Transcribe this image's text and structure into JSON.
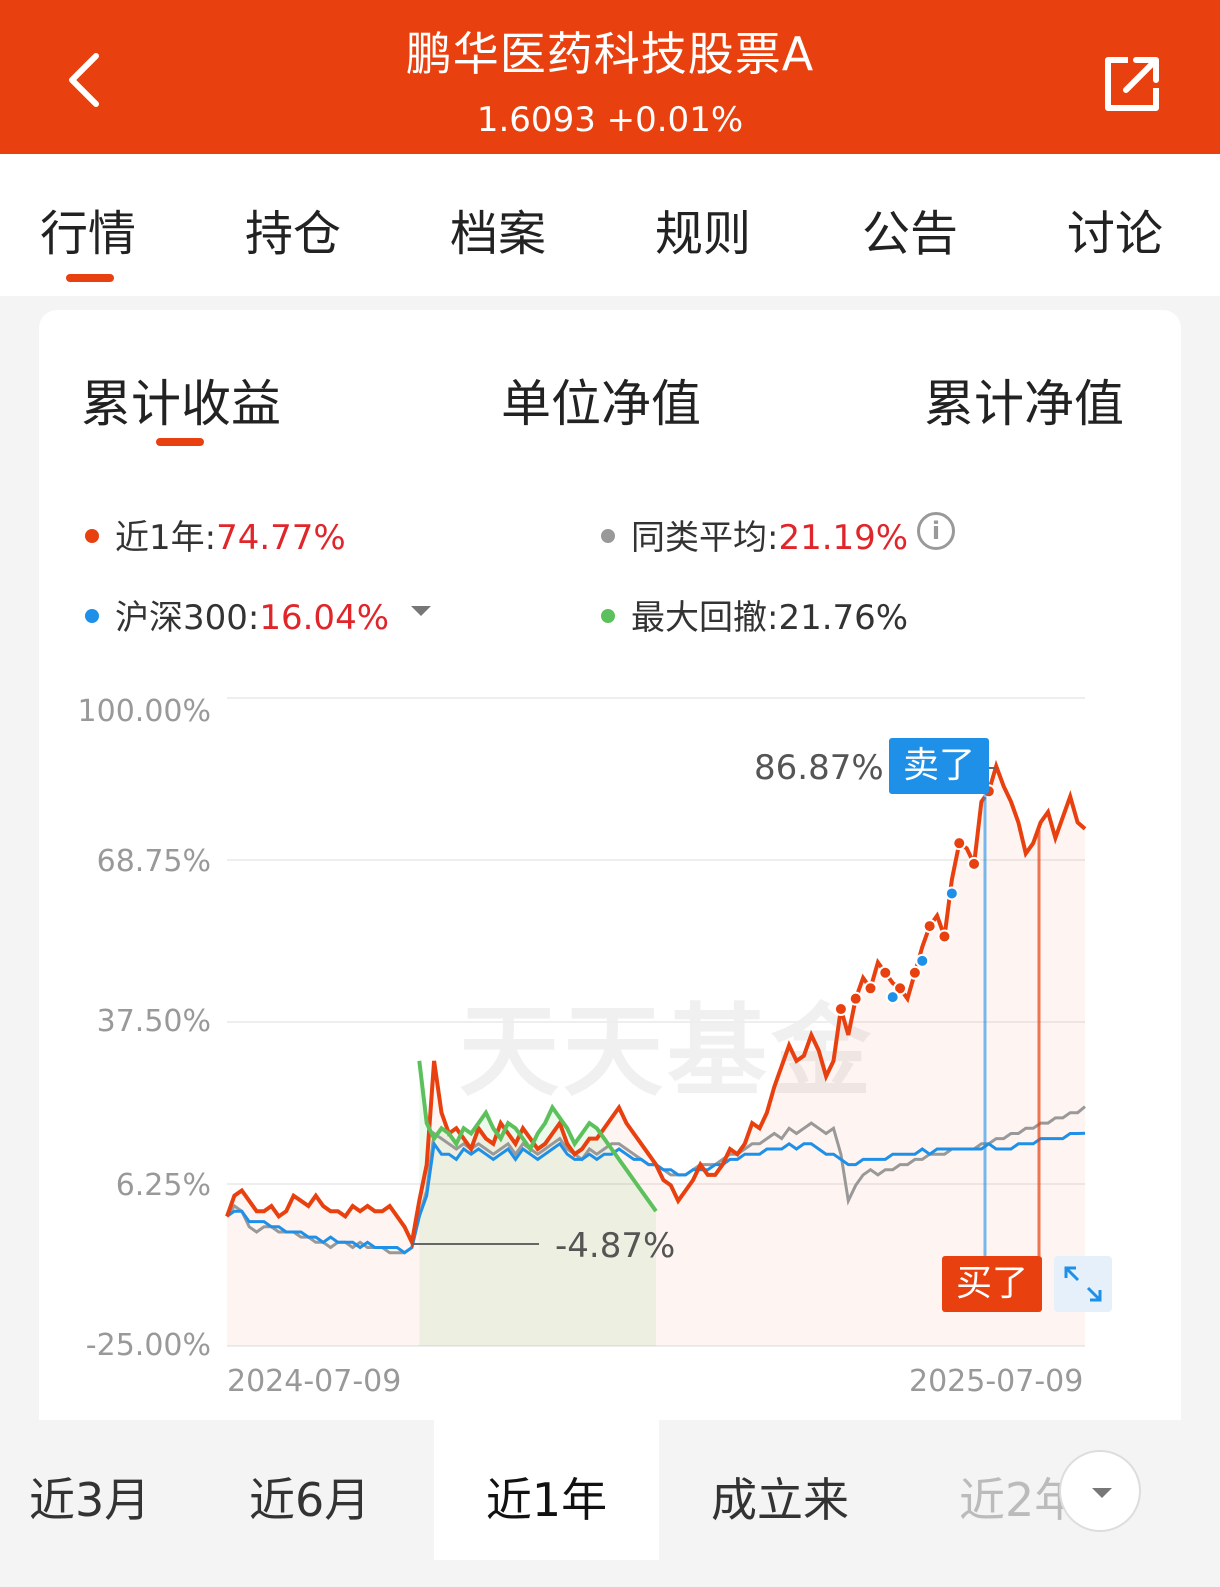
{
  "header": {
    "title": "鹏华医药科技股票A",
    "subtitle": "1.6093 +0.01%",
    "background": "#e8400f"
  },
  "tabs": [
    "行情",
    "持仓",
    "档案",
    "规则",
    "公告",
    "讨论"
  ],
  "subtabs": [
    "累计收益",
    "单位净值",
    "累计净值"
  ],
  "legend": {
    "fund": {
      "label": "近1年:",
      "value": "74.77%",
      "color": "#e8400f"
    },
    "peer": {
      "label": "同类平均:",
      "value": "21.19%",
      "color": "#999999"
    },
    "index": {
      "label": "沪深300:",
      "value": "16.04%",
      "color": "#1e90e8"
    },
    "drawdown": {
      "label": "最大回撤:",
      "value": "21.76%",
      "color": "#5cc15c"
    }
  },
  "chart_data": {
    "type": "line",
    "y_ticks": [
      "100.00%",
      "68.75%",
      "37.50%",
      "6.25%",
      "-25.00%"
    ],
    "ylim": [
      -25,
      100
    ],
    "x_labels": [
      "2024-07-09",
      "2025-07-09"
    ],
    "watermark": "天天基金",
    "annotations": {
      "max_value": "86.87%",
      "min_value": "-4.87%",
      "sell_tag": "卖了",
      "buy_tag": "买了"
    },
    "series": [
      {
        "name": "近1年",
        "color": "#e8400f",
        "values": [
          0,
          4,
          5,
          3,
          1,
          1,
          2,
          0,
          1,
          4,
          3,
          2,
          4,
          2,
          1,
          1,
          0,
          2,
          1,
          2,
          1,
          1,
          2,
          0,
          -2,
          -5,
          3,
          10,
          30,
          20,
          16,
          17,
          15,
          13,
          17,
          15,
          14,
          18,
          16,
          14,
          17,
          15,
          13,
          14,
          16,
          18,
          14,
          12,
          13,
          15,
          15,
          17,
          19,
          21,
          18,
          16,
          14,
          12,
          10,
          7,
          6,
          3,
          5,
          7,
          10,
          8,
          8,
          10,
          13,
          12,
          14,
          18,
          17,
          20,
          25,
          29,
          33,
          30,
          31,
          35,
          32,
          27,
          30,
          40,
          35,
          42,
          46,
          44,
          49,
          47,
          45,
          44,
          42,
          47,
          52,
          56,
          58,
          54,
          65,
          72,
          71,
          68,
          80,
          82,
          86.87,
          83,
          80,
          76,
          70,
          72,
          76,
          78,
          73,
          77,
          81,
          76,
          74.77
        ]
      },
      {
        "name": "同类平均",
        "color": "#999999",
        "values": [
          0,
          2,
          1,
          -2,
          -3,
          -2,
          -2,
          -3,
          -3,
          -3,
          -4,
          -4,
          -5,
          -5,
          -6,
          -5,
          -5,
          -6,
          -5,
          -6,
          -6,
          -6,
          -7,
          -7,
          -7,
          -6,
          0,
          5,
          16,
          15,
          14,
          13,
          14,
          13,
          14,
          13,
          12,
          13,
          14,
          12,
          14,
          13,
          12,
          13,
          14,
          15,
          13,
          12,
          11,
          13,
          12,
          13,
          14,
          14,
          13,
          12,
          11,
          10,
          10,
          9,
          8,
          8,
          8,
          9,
          10,
          10,
          10,
          11,
          12,
          12,
          13,
          14,
          14,
          15,
          16,
          15,
          17,
          16,
          17,
          18,
          17,
          16,
          17,
          12,
          3,
          6,
          8,
          9,
          8,
          9,
          9,
          10,
          10,
          11,
          11,
          12,
          12,
          12,
          13,
          13,
          13,
          13,
          14,
          14,
          15,
          15,
          16,
          16,
          17,
          17,
          18,
          18,
          19,
          19,
          20,
          20,
          21.19
        ]
      },
      {
        "name": "沪深300",
        "color": "#1e90e8",
        "values": [
          0,
          1,
          1,
          -1,
          -1,
          -1,
          -2,
          -2,
          -3,
          -3,
          -3,
          -4,
          -4,
          -5,
          -4,
          -5,
          -5,
          -5,
          -6,
          -5,
          -6,
          -6,
          -6,
          -6,
          -7,
          -6,
          0,
          4,
          14,
          12,
          12,
          11,
          13,
          12,
          13,
          12,
          11,
          12,
          13,
          11,
          13,
          12,
          11,
          12,
          13,
          14,
          12,
          11,
          11,
          12,
          11,
          12,
          12,
          13,
          12,
          11,
          11,
          10,
          10,
          9,
          9,
          8,
          8,
          9,
          9,
          9,
          10,
          10,
          11,
          11,
          12,
          12,
          12,
          13,
          13,
          13,
          14,
          13,
          14,
          14,
          13,
          12,
          12,
          11,
          10,
          10,
          11,
          11,
          11,
          11,
          12,
          12,
          12,
          12,
          13,
          12,
          13,
          13,
          13,
          13,
          13,
          13,
          13,
          14,
          13,
          13,
          13,
          14,
          14,
          14,
          15,
          15,
          15,
          15,
          16,
          16,
          16.04
        ]
      },
      {
        "name": "最大回撤",
        "color": "#5cc15c",
        "values": [
          30,
          18,
          15,
          17,
          16,
          14,
          17,
          16,
          18,
          20,
          17,
          15,
          18,
          17,
          15,
          13,
          16,
          18,
          21,
          19,
          17,
          14,
          16,
          18,
          17,
          15,
          13,
          11,
          9,
          7,
          5,
          3,
          1
        ]
      }
    ]
  },
  "periods": [
    "近3月",
    "近6月",
    "近1年",
    "成立来",
    "近2年"
  ]
}
